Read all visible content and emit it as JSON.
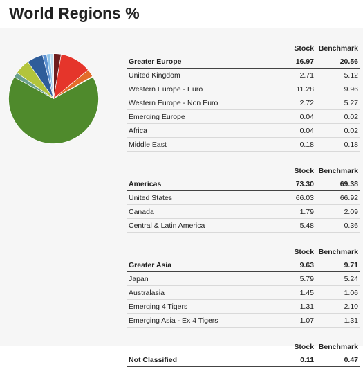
{
  "title": "World Regions %",
  "table_headers": {
    "stock": "Stock",
    "benchmark": "Benchmark"
  },
  "sections": [
    {
      "name": "Greater Europe",
      "stock": "16.97",
      "benchmark": "20.56",
      "rows": [
        {
          "name": "United Kingdom",
          "stock": "2.71",
          "benchmark": "5.12"
        },
        {
          "name": "Western Europe - Euro",
          "stock": "11.28",
          "benchmark": "9.96"
        },
        {
          "name": "Western Europe - Non Euro",
          "stock": "2.72",
          "benchmark": "5.27"
        },
        {
          "name": "Emerging Europe",
          "stock": "0.04",
          "benchmark": "0.02"
        },
        {
          "name": "Africa",
          "stock": "0.04",
          "benchmark": "0.02"
        },
        {
          "name": "Middle East",
          "stock": "0.18",
          "benchmark": "0.18"
        }
      ]
    },
    {
      "name": "Americas",
      "stock": "73.30",
      "benchmark": "69.38",
      "rows": [
        {
          "name": "United States",
          "stock": "66.03",
          "benchmark": "66.92"
        },
        {
          "name": "Canada",
          "stock": "1.79",
          "benchmark": "2.09"
        },
        {
          "name": "Central & Latin America",
          "stock": "5.48",
          "benchmark": "0.36"
        }
      ]
    },
    {
      "name": "Greater Asia",
      "stock": "9.63",
      "benchmark": "9.71",
      "rows": [
        {
          "name": "Japan",
          "stock": "5.79",
          "benchmark": "5.24"
        },
        {
          "name": "Australasia",
          "stock": "1.45",
          "benchmark": "1.06"
        },
        {
          "name": "Emerging 4 Tigers",
          "stock": "1.31",
          "benchmark": "2.10"
        },
        {
          "name": "Emerging Asia - Ex 4 Tigers",
          "stock": "1.07",
          "benchmark": "1.31"
        }
      ]
    },
    {
      "name": "Not Classified",
      "stock": "0.11",
      "benchmark": "0.47",
      "rows": []
    }
  ],
  "chart_data": {
    "type": "pie",
    "title": "World Regions %",
    "slices": [
      {
        "label": "United Kingdom",
        "value": 2.71,
        "color": "#6e1e1e"
      },
      {
        "label": "Western Europe - Euro",
        "value": 11.28,
        "color": "#e5352b"
      },
      {
        "label": "Western Europe - Non Euro",
        "value": 2.72,
        "color": "#e36c2a"
      },
      {
        "label": "Emerging Europe",
        "value": 0.04,
        "color": "#f0a35a"
      },
      {
        "label": "Africa",
        "value": 0.04,
        "color": "#c9a15a"
      },
      {
        "label": "Middle East",
        "value": 0.18,
        "color": "#b0552f"
      },
      {
        "label": "United States",
        "value": 66.03,
        "color": "#4f8a2c"
      },
      {
        "label": "Canada",
        "value": 1.79,
        "color": "#6aa08e"
      },
      {
        "label": "Central & Latin America",
        "value": 5.48,
        "color": "#b3c43c"
      },
      {
        "label": "Japan",
        "value": 5.79,
        "color": "#2f5d9a"
      },
      {
        "label": "Australasia",
        "value": 1.45,
        "color": "#5a8fd0"
      },
      {
        "label": "Emerging 4 Tigers",
        "value": 1.31,
        "color": "#8ec3e8"
      },
      {
        "label": "Emerging Asia - Ex 4 Tigers",
        "value": 1.07,
        "color": "#b9dcf0"
      },
      {
        "label": "Not Classified",
        "value": 0.11,
        "color": "#cccccc"
      }
    ]
  }
}
